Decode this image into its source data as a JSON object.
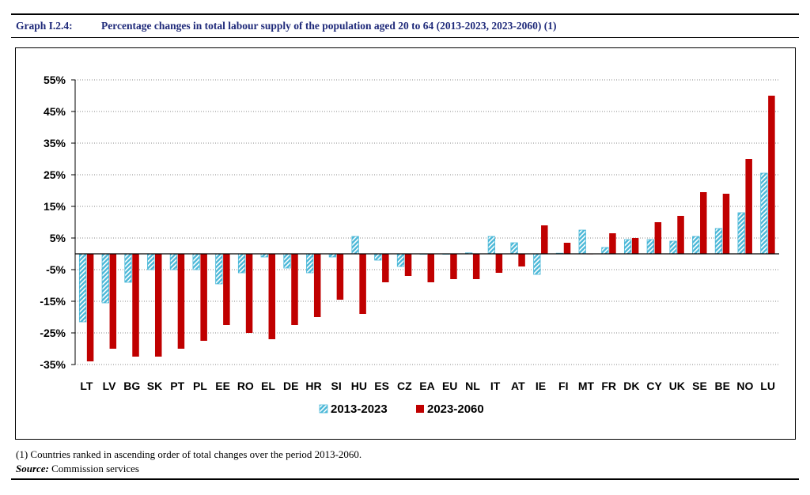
{
  "header": {
    "graph_number": "Graph I.2.4:",
    "title": "Percentage changes in total labour supply of the population aged 20 to 64 (2013-2023, 2023-2060) (1)"
  },
  "notes": {
    "note": "(1) Countries ranked in ascending order of total changes over the period 2013-2060.",
    "source_label": "Source:",
    "source_text": "Commission services"
  },
  "colors": {
    "series1": "#4bb8d8",
    "series1_stripe": "#ffffff",
    "series2": "#c00000"
  },
  "chart_data": {
    "type": "bar",
    "title": "",
    "xlabel": "",
    "ylabel": "",
    "ylim": [
      -35,
      55
    ],
    "yticks": [
      -35,
      -25,
      -15,
      -5,
      5,
      15,
      25,
      35,
      45,
      55
    ],
    "ytick_labels": [
      "-35%",
      "-25%",
      "-15%",
      "-5%",
      "5%",
      "15%",
      "25%",
      "35%",
      "45%",
      "55%"
    ],
    "grid": true,
    "legend": "bottom-center",
    "categories": [
      "LT",
      "LV",
      "BG",
      "SK",
      "PT",
      "PL",
      "EE",
      "RO",
      "EL",
      "DE",
      "HR",
      "SI",
      "HU",
      "ES",
      "CZ",
      "EA",
      "EU",
      "NL",
      "IT",
      "AT",
      "IE",
      "FI",
      "MT",
      "FR",
      "DK",
      "CY",
      "UK",
      "SE",
      "BE",
      "NO",
      "LU"
    ],
    "series": [
      {
        "name": "2013-2023",
        "values": [
          -21.5,
          -15.5,
          -9,
          -5,
          -5,
          -5,
          -9.5,
          -6,
          -1,
          -4.5,
          -6,
          -1,
          5.5,
          -2,
          -4,
          0,
          0,
          0.3,
          5.5,
          3.5,
          -6.5,
          0.2,
          7.5,
          2,
          4.5,
          4.5,
          4,
          5.5,
          8,
          13,
          25.5
        ]
      },
      {
        "name": "2023-2060",
        "values": [
          -34,
          -30,
          -32.5,
          -32.5,
          -30,
          -27.5,
          -22.5,
          -25,
          -27,
          -22.5,
          -20,
          -14.5,
          -19,
          -9,
          -7,
          -9,
          -8,
          -8,
          -6,
          -4,
          9,
          3.5,
          0,
          6.5,
          5,
          10,
          12,
          19.5,
          19,
          30,
          50
        ]
      }
    ]
  }
}
